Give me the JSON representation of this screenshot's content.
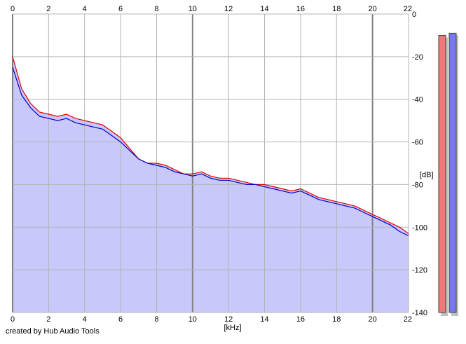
{
  "footer": {
    "credit": "created by Hub Audio Tools"
  },
  "chart_data": {
    "type": "line",
    "title": "",
    "xlabel": "[kHz]",
    "ylabel": "[dB]",
    "xlim": [
      0,
      22
    ],
    "ylim": [
      -140,
      0
    ],
    "x_ticks": [
      0,
      2,
      4,
      6,
      8,
      10,
      12,
      14,
      16,
      18,
      20,
      22
    ],
    "y_ticks": [
      0,
      -20,
      -40,
      -60,
      -80,
      -100,
      -120,
      -140
    ],
    "x_tick_labels": [
      "0",
      "2",
      "4",
      "6",
      "8",
      "10",
      "12",
      "14",
      "16",
      "18",
      "20",
      "22"
    ],
    "y_tick_labels": [
      "0",
      "-20",
      "-40",
      "-60",
      "-80",
      "-100",
      "-120",
      "-140"
    ],
    "grid": true,
    "x_axis_repeated_on_top": true,
    "colors": {
      "fill": "#c8c8fa",
      "series_red": "#e00000",
      "series_blue": "#0000c8",
      "grid": "#b4b4b4",
      "grid_major": "#808080"
    },
    "series": [
      {
        "color": "#e00000",
        "x": [
          0,
          0.5,
          1,
          1.5,
          2,
          2.5,
          3,
          3.5,
          4,
          4.5,
          5,
          5.5,
          6,
          6.5,
          7,
          7.5,
          8,
          8.5,
          9,
          9.5,
          10,
          10.5,
          11,
          11.5,
          12,
          12.5,
          13,
          13.5,
          14,
          14.5,
          15,
          15.5,
          16,
          16.5,
          17,
          17.5,
          18,
          18.5,
          19,
          19.5,
          20,
          20.5,
          21,
          21.5,
          22
        ],
        "values": [
          -20,
          -35,
          -42,
          -46,
          -47,
          -48,
          -47,
          -49,
          -50,
          -51,
          -52,
          -55,
          -58,
          -63,
          -68,
          -70,
          -70,
          -71,
          -73,
          -75,
          -75,
          -74,
          -76,
          -77,
          -77,
          -78,
          -79,
          -80,
          -80,
          -81,
          -82,
          -83,
          -82,
          -84,
          -86,
          -87,
          -88,
          -89,
          -90,
          -92,
          -94,
          -96,
          -98,
          -100,
          -103
        ]
      },
      {
        "color": "#0000c8",
        "x": [
          0,
          0.5,
          1,
          1.5,
          2,
          2.5,
          3,
          3.5,
          4,
          4.5,
          5,
          5.5,
          6,
          6.5,
          7,
          7.5,
          8,
          8.5,
          9,
          9.5,
          10,
          10.5,
          11,
          11.5,
          12,
          12.5,
          13,
          13.5,
          14,
          14.5,
          15,
          15.5,
          16,
          16.5,
          17,
          17.5,
          18,
          18.5,
          19,
          19.5,
          20,
          20.5,
          21,
          21.5,
          22
        ],
        "values": [
          -25,
          -38,
          -44,
          -48,
          -49,
          -50,
          -49,
          -51,
          -52,
          -53,
          -54,
          -57,
          -60,
          -64,
          -68,
          -70,
          -71,
          -72,
          -74,
          -75,
          -76,
          -75,
          -77,
          -78,
          -78,
          -79,
          -80,
          -80,
          -81,
          -82,
          -83,
          -84,
          -83,
          -85,
          -87,
          -88,
          -89,
          -90,
          -91,
          -93,
          -95,
          -97,
          -99,
          -102,
          -104
        ]
      }
    ],
    "level_meters": [
      {
        "color": "#f07878",
        "value_db": -10
      },
      {
        "color": "#7878f0",
        "value_db": -9
      }
    ]
  }
}
